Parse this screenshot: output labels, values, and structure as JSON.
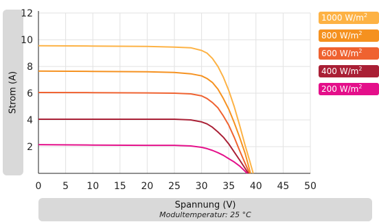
{
  "chart_data": {
    "type": "line",
    "xlabel": "Spannung (V)",
    "xsubtitle": "Modultemperatur: 25 °C",
    "ylabel": "Strom (A)",
    "xlim": [
      0,
      50
    ],
    "ylim": [
      0,
      12
    ],
    "xticks": [
      "0",
      "5",
      "10",
      "15",
      "20",
      "25",
      "30",
      "35",
      "40",
      "45",
      "50"
    ],
    "yticks": [
      "2",
      "4",
      "6",
      "8",
      "10",
      "12"
    ],
    "grid": true,
    "legend_position": "right",
    "series": [
      {
        "name": "1000 W/m",
        "color": "#fdb244",
        "points": [
          [
            0,
            9.55
          ],
          [
            10,
            9.53
          ],
          [
            20,
            9.5
          ],
          [
            25,
            9.45
          ],
          [
            28,
            9.4
          ],
          [
            30,
            9.2
          ],
          [
            31,
            9.0
          ],
          [
            32,
            8.6
          ],
          [
            33,
            8.0
          ],
          [
            34,
            7.2
          ],
          [
            35,
            6.2
          ],
          [
            36,
            5.0
          ],
          [
            37,
            3.6
          ],
          [
            38,
            2.1
          ],
          [
            38.8,
            1.0
          ],
          [
            39.5,
            0
          ]
        ]
      },
      {
        "name": "800 W/m",
        "color": "#f5911f",
        "points": [
          [
            0,
            7.65
          ],
          [
            10,
            7.63
          ],
          [
            20,
            7.6
          ],
          [
            25,
            7.55
          ],
          [
            28,
            7.45
          ],
          [
            30,
            7.3
          ],
          [
            31,
            7.1
          ],
          [
            32,
            6.8
          ],
          [
            33,
            6.3
          ],
          [
            34,
            5.6
          ],
          [
            35,
            4.8
          ],
          [
            36,
            3.8
          ],
          [
            37,
            2.7
          ],
          [
            38,
            1.5
          ],
          [
            39,
            0
          ]
        ]
      },
      {
        "name": "600 W/m",
        "color": "#ef6230",
        "points": [
          [
            0,
            6.05
          ],
          [
            10,
            6.04
          ],
          [
            20,
            6.02
          ],
          [
            25,
            6.0
          ],
          [
            28,
            5.95
          ],
          [
            30,
            5.8
          ],
          [
            31,
            5.6
          ],
          [
            32,
            5.3
          ],
          [
            33,
            4.9
          ],
          [
            34,
            4.3
          ],
          [
            35,
            3.6
          ],
          [
            36,
            2.7
          ],
          [
            37,
            1.7
          ],
          [
            38.8,
            0
          ]
        ]
      },
      {
        "name": "400 W/m",
        "color": "#a91f35",
        "points": [
          [
            0,
            4.05
          ],
          [
            10,
            4.05
          ],
          [
            20,
            4.05
          ],
          [
            25,
            4.05
          ],
          [
            28,
            4.0
          ],
          [
            30,
            3.85
          ],
          [
            31,
            3.7
          ],
          [
            32,
            3.45
          ],
          [
            33,
            3.1
          ],
          [
            34,
            2.7
          ],
          [
            35,
            2.2
          ],
          [
            36,
            1.6
          ],
          [
            37,
            1.0
          ],
          [
            38.6,
            0
          ]
        ]
      },
      {
        "name": "200 W/m",
        "color": "#e40f8a",
        "points": [
          [
            0,
            2.15
          ],
          [
            10,
            2.12
          ],
          [
            20,
            2.1
          ],
          [
            25,
            2.1
          ],
          [
            28,
            2.05
          ],
          [
            30,
            1.95
          ],
          [
            31,
            1.85
          ],
          [
            32,
            1.72
          ],
          [
            33,
            1.55
          ],
          [
            34,
            1.35
          ],
          [
            35,
            1.1
          ],
          [
            36,
            0.85
          ],
          [
            37,
            0.55
          ],
          [
            38.4,
            0
          ]
        ]
      }
    ],
    "legend_superscript": "2"
  }
}
